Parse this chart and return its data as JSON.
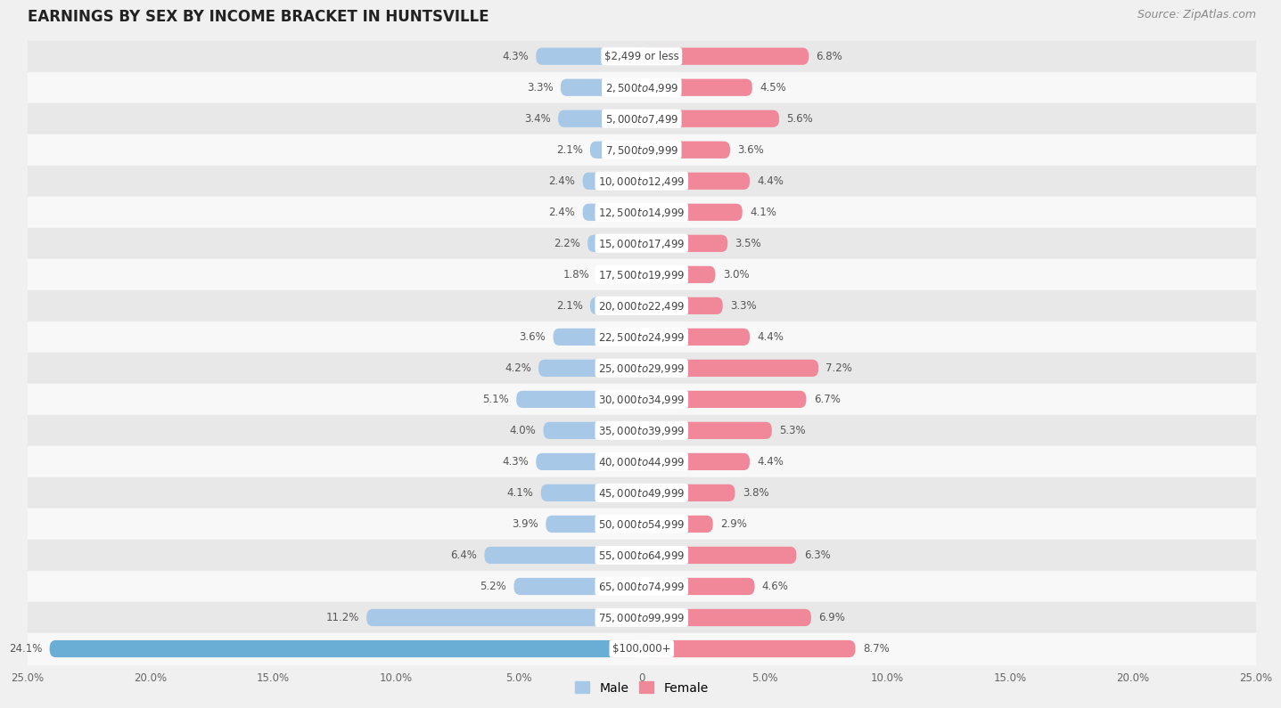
{
  "title": "EARNINGS BY SEX BY INCOME BRACKET IN HUNTSVILLE",
  "source": "Source: ZipAtlas.com",
  "categories": [
    "$2,499 or less",
    "$2,500 to $4,999",
    "$5,000 to $7,499",
    "$7,500 to $9,999",
    "$10,000 to $12,499",
    "$12,500 to $14,999",
    "$15,000 to $17,499",
    "$17,500 to $19,999",
    "$20,000 to $22,499",
    "$22,500 to $24,999",
    "$25,000 to $29,999",
    "$30,000 to $34,999",
    "$35,000 to $39,999",
    "$40,000 to $44,999",
    "$45,000 to $49,999",
    "$50,000 to $54,999",
    "$55,000 to $64,999",
    "$65,000 to $74,999",
    "$75,000 to $99,999",
    "$100,000+"
  ],
  "male_values": [
    4.3,
    3.3,
    3.4,
    2.1,
    2.4,
    2.4,
    2.2,
    1.8,
    2.1,
    3.6,
    4.2,
    5.1,
    4.0,
    4.3,
    4.1,
    3.9,
    6.4,
    5.2,
    11.2,
    24.1
  ],
  "female_values": [
    6.8,
    4.5,
    5.6,
    3.6,
    4.4,
    4.1,
    3.5,
    3.0,
    3.3,
    4.4,
    7.2,
    6.7,
    5.3,
    4.4,
    3.8,
    2.9,
    6.3,
    4.6,
    6.9,
    8.7
  ],
  "male_color": "#a8c8e8",
  "female_color": "#f0889a",
  "last_male_color": "#6aaed6",
  "bg_color": "#f0f0f0",
  "row_even_color": "#e8e8e8",
  "row_odd_color": "#f8f8f8",
  "label_bg_color": "#ffffff",
  "label_text_color": "#444444",
  "pct_text_color": "#555555",
  "xlim": 25.0,
  "title_fontsize": 12,
  "source_fontsize": 9,
  "bar_height": 0.55,
  "label_fontsize": 8.5,
  "pct_fontsize": 8.5,
  "legend_fontsize": 10
}
